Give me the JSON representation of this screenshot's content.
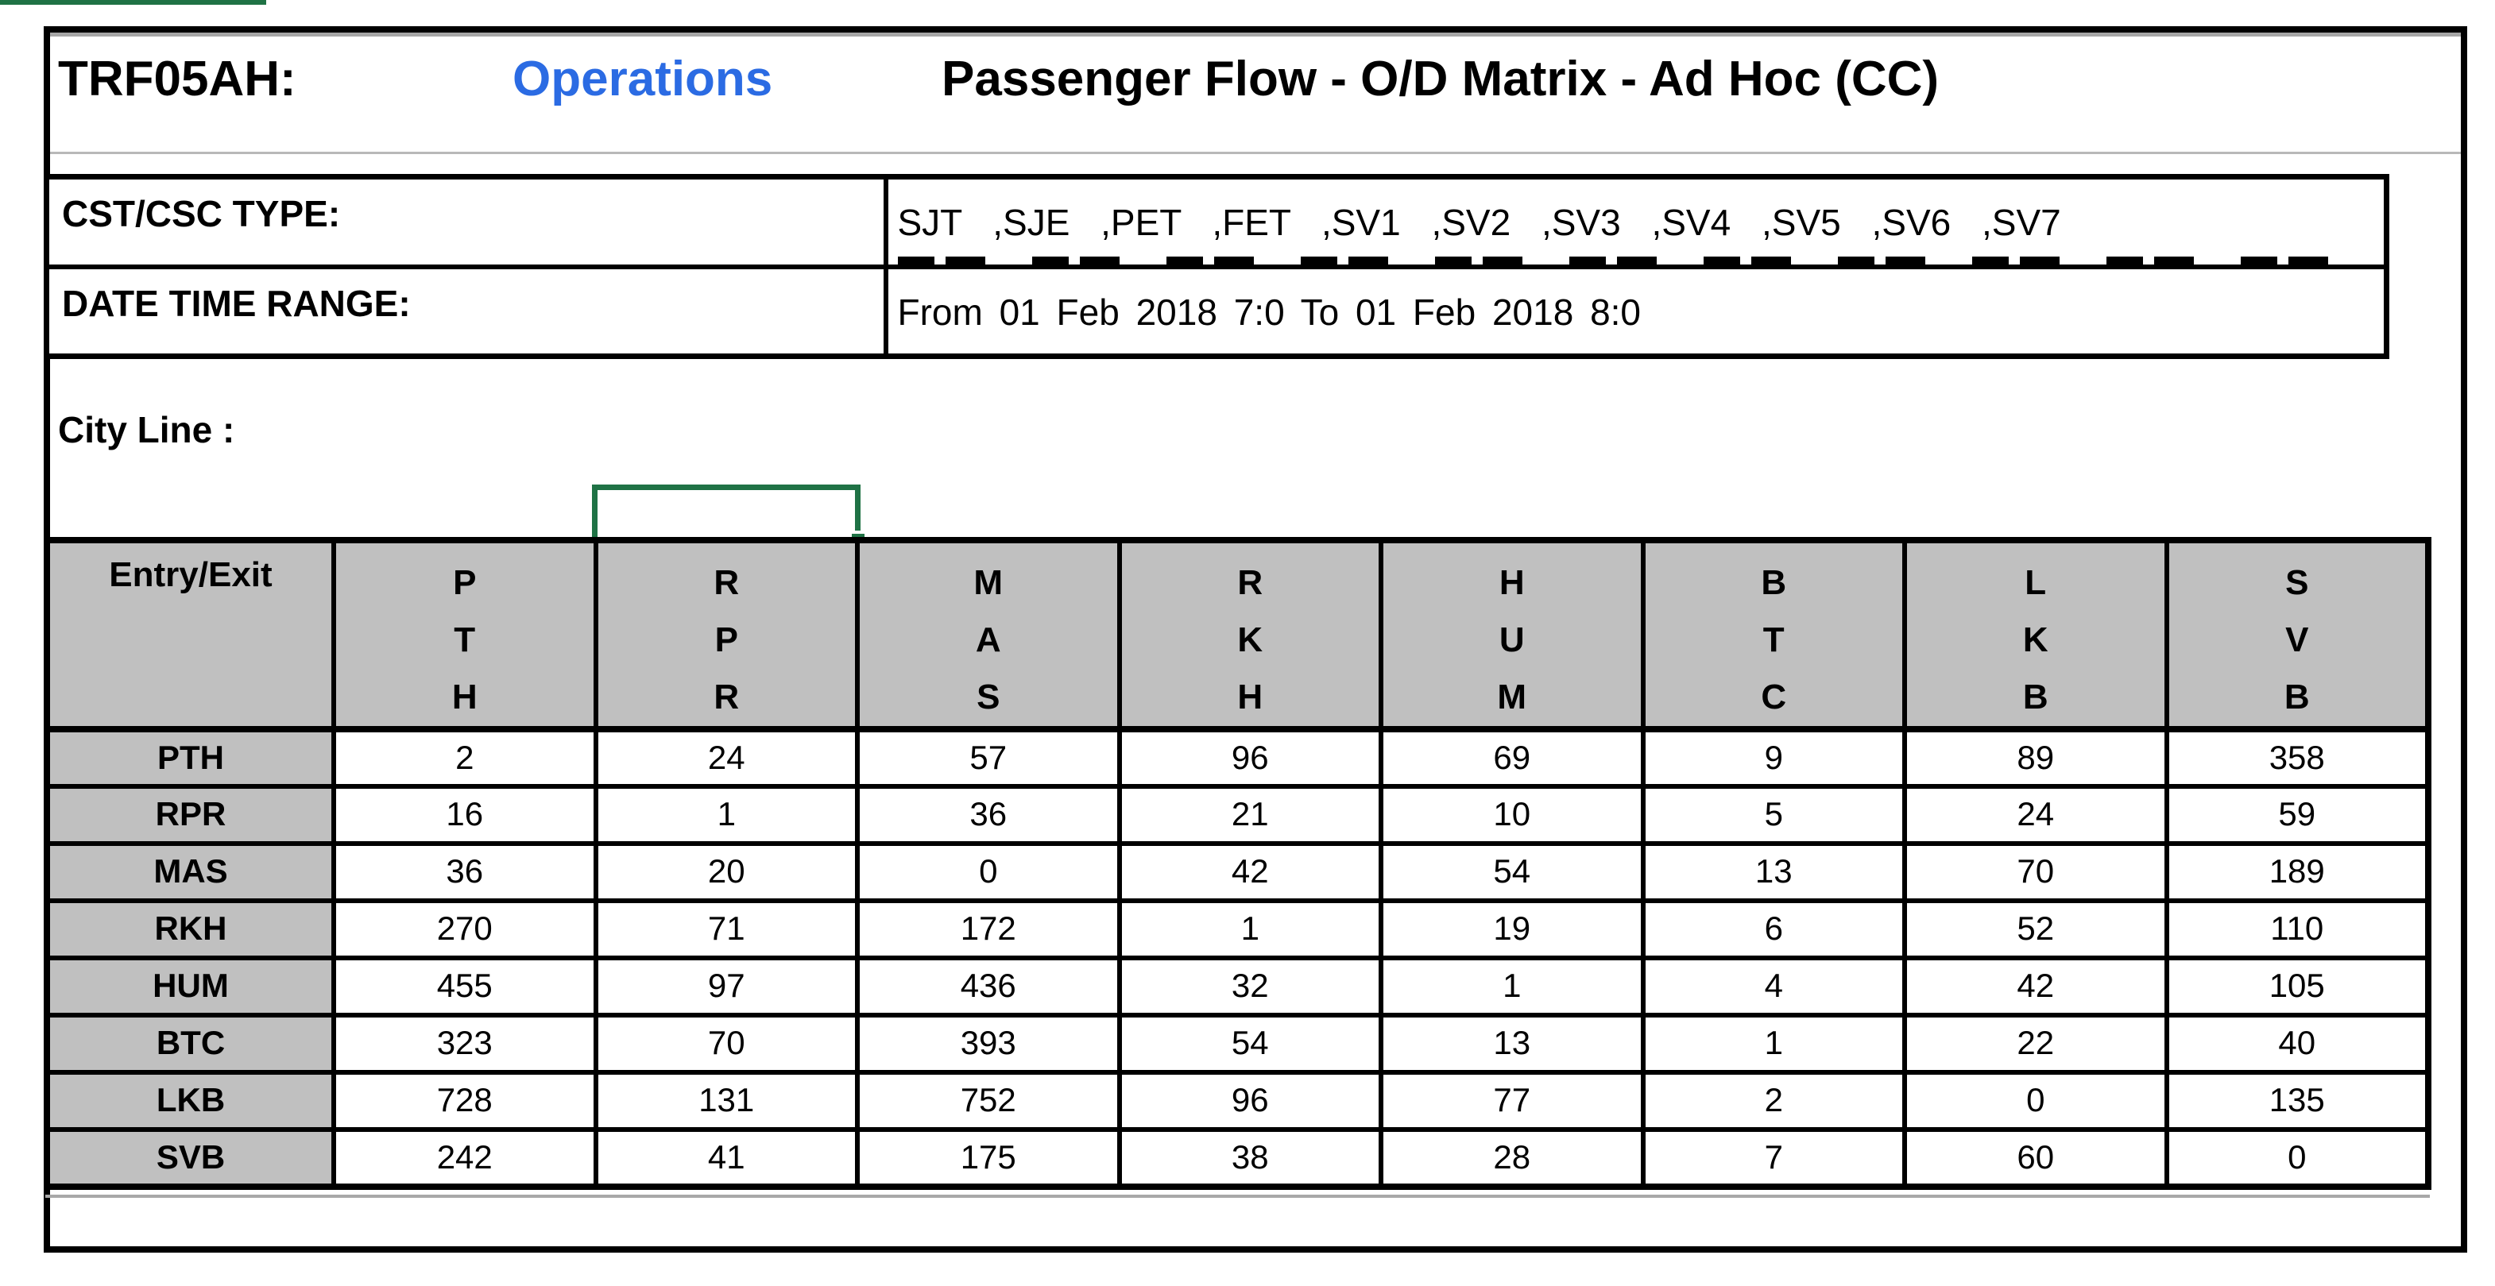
{
  "title": {
    "report_code": "TRF05AH:",
    "category": "Operations",
    "report_name": "Passenger Flow - O/D Matrix - Ad Hoc (CC)"
  },
  "filters": {
    "cst_csc_label": "CST/CSC TYPE:",
    "cst_csc_value": "SJT ,SJE ,PET ,FET ,SV1 ,SV2 ,SV3 ,SV4 ,SV5 ,SV6 ,SV7",
    "cst_csc_second_line_clipped": true,
    "date_time_label": "DATE TIME RANGE:",
    "date_time_value": "From 01 Feb 2018 7:0 To 01 Feb 2018 8:0"
  },
  "city_line_label": "City Line :",
  "matrix": {
    "corner_header": "Entry/Exit",
    "columns": [
      "PTH",
      "RPR",
      "MAS",
      "RKH",
      "HUM",
      "BTC",
      "LKB",
      "SVB"
    ],
    "rows": [
      {
        "label": "PTH",
        "values": [
          2,
          24,
          57,
          96,
          69,
          9,
          89,
          358
        ]
      },
      {
        "label": "RPR",
        "values": [
          16,
          1,
          36,
          21,
          10,
          5,
          24,
          59
        ]
      },
      {
        "label": "MAS",
        "values": [
          36,
          20,
          0,
          42,
          54,
          13,
          70,
          189
        ]
      },
      {
        "label": "RKH",
        "values": [
          270,
          71,
          172,
          1,
          19,
          6,
          52,
          110
        ]
      },
      {
        "label": "HUM",
        "values": [
          455,
          97,
          436,
          32,
          1,
          4,
          42,
          105
        ]
      },
      {
        "label": "BTC",
        "values": [
          323,
          70,
          393,
          54,
          13,
          1,
          22,
          40
        ]
      },
      {
        "label": "LKB",
        "values": [
          728,
          131,
          752,
          96,
          77,
          2,
          0,
          135
        ]
      },
      {
        "label": "SVB",
        "values": [
          242,
          41,
          175,
          38,
          28,
          7,
          60,
          0
        ]
      }
    ]
  },
  "selection": {
    "selected_cell_value": "",
    "position": "above RPR column"
  },
  "colors": {
    "selection_green": "#1f7245",
    "category_blue": "#2b6be3",
    "header_gray": "#c0c0c0",
    "border_black": "#000000"
  }
}
